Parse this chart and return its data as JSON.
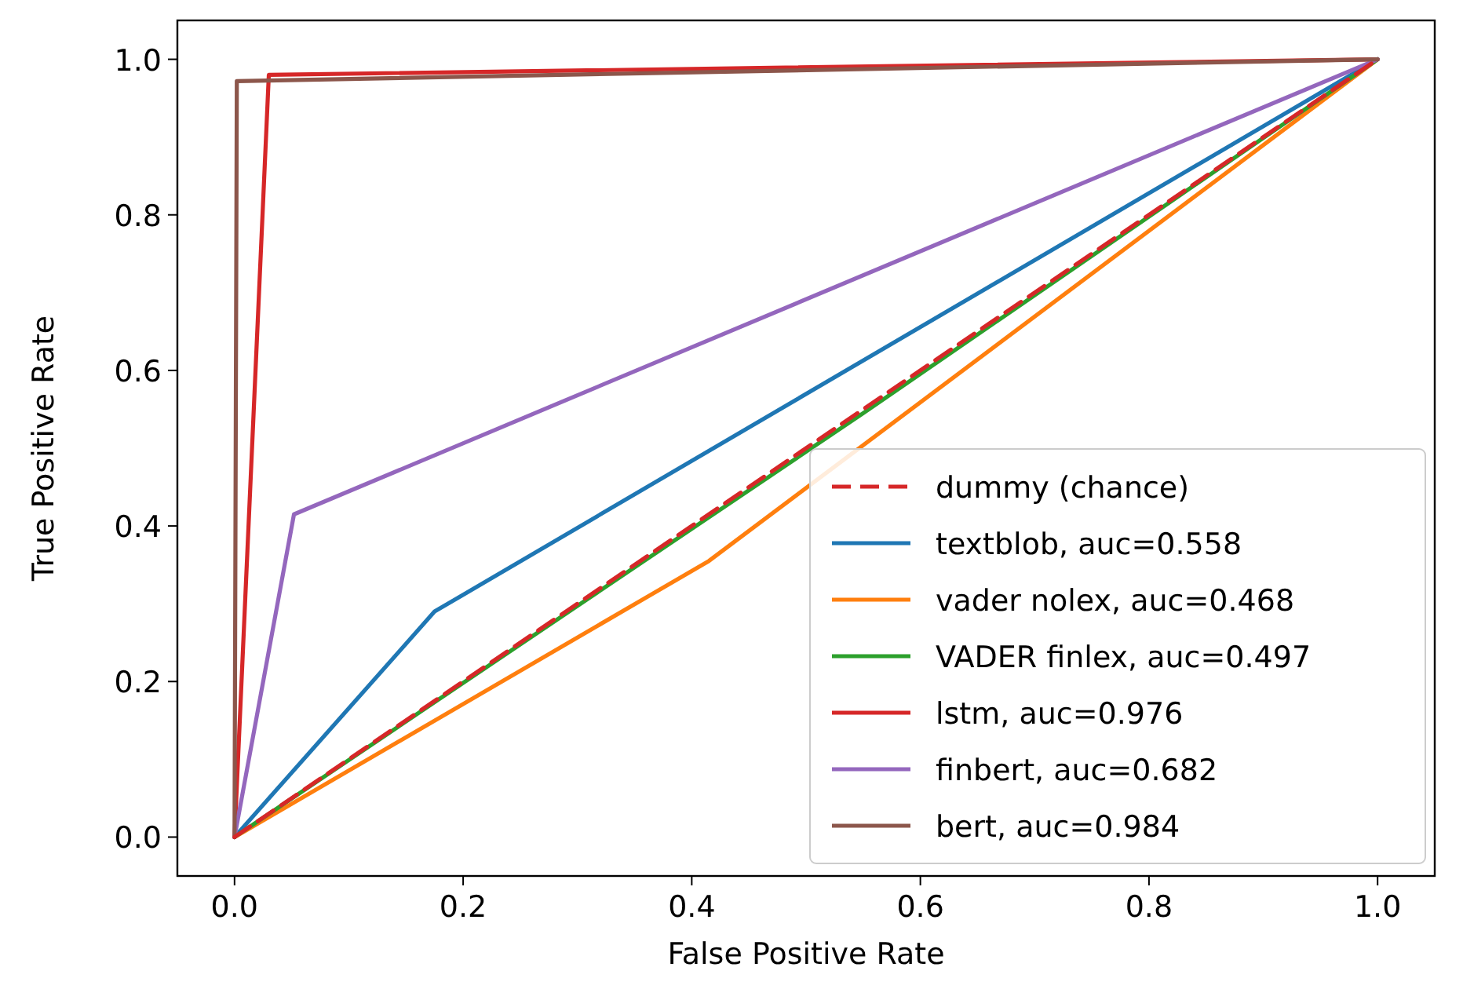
{
  "chart_data": {
    "type": "line",
    "xlabel": "False Positive Rate",
    "ylabel": "True Positive Rate",
    "xlim": [
      -0.05,
      1.05
    ],
    "ylim": [
      -0.05,
      1.05
    ],
    "xticks": [
      {
        "value": 0,
        "label": "0.0"
      },
      {
        "value": 0.2,
        "label": "0.2"
      },
      {
        "value": 0.4,
        "label": "0.4"
      },
      {
        "value": 0.6,
        "label": "0.6"
      },
      {
        "value": 0.8,
        "label": "0.8"
      },
      {
        "value": 1,
        "label": "1.0"
      }
    ],
    "yticks": [
      {
        "value": 0,
        "label": "0.0"
      },
      {
        "value": 0.2,
        "label": "0.2"
      },
      {
        "value": 0.4,
        "label": "0.4"
      },
      {
        "value": 0.6,
        "label": "0.6"
      },
      {
        "value": 0.8,
        "label": "0.8"
      },
      {
        "value": 1,
        "label": "1.0"
      }
    ],
    "grid": false,
    "legend": "bottom right",
    "series": [
      {
        "name": "dummy (chance)",
        "color": "#d62728",
        "line_style": "dashed",
        "x": [
          0,
          1
        ],
        "values": [
          0,
          1
        ]
      },
      {
        "name": "textblob, auc=0.558",
        "color": "#1f77b4",
        "x": [
          0,
          0.175,
          1
        ],
        "values": [
          0,
          0.29,
          1
        ]
      },
      {
        "name": "vader nolex, auc=0.468",
        "color": "#ff7f0e",
        "x": [
          0,
          0.415,
          1
        ],
        "values": [
          0,
          0.355,
          1
        ]
      },
      {
        "name": "VADER finlex, auc=0.497",
        "color": "#2ca02c",
        "x": [
          0,
          0.55,
          1
        ],
        "values": [
          0,
          0.545,
          1
        ]
      },
      {
        "name": "lstm, auc=0.976",
        "color": "#d62728",
        "x": [
          0,
          0.03,
          1
        ],
        "values": [
          0,
          0.98,
          1
        ]
      },
      {
        "name": "finbert, auc=0.682",
        "color": "#9467bd",
        "x": [
          0,
          0.052,
          1
        ],
        "values": [
          0,
          0.415,
          1
        ]
      },
      {
        "name": "bert, auc=0.984",
        "color": "#8c564b",
        "x": [
          0,
          0.002,
          1
        ],
        "values": [
          0,
          0.972,
          1
        ]
      }
    ]
  }
}
